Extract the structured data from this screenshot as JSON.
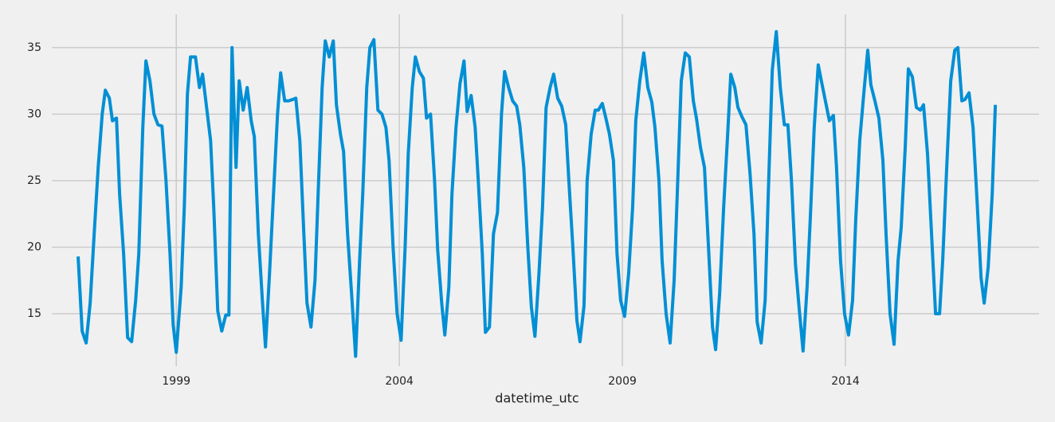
{
  "chart_data": {
    "type": "line",
    "xlabel": "datetime_utc",
    "xlim": [
      1996.21,
      2018.34
    ],
    "ylim": [
      11.05,
      37.5
    ],
    "xticks": [
      1999,
      2004,
      2009,
      2014
    ],
    "yticks": [
      15,
      20,
      25,
      30,
      35
    ],
    "grid": true,
    "x": [
      1996.8,
      1996.89,
      1996.98,
      1997.07,
      1997.16,
      1997.25,
      1997.34,
      1997.41,
      1997.5,
      1997.57,
      1997.66,
      1997.73,
      1997.82,
      1997.91,
      1998.0,
      1998.09,
      1998.16,
      1998.25,
      1998.32,
      1998.41,
      1998.5,
      1998.59,
      1998.68,
      1998.77,
      1998.86,
      1998.93,
      1999.0,
      1999.11,
      1999.18,
      1999.25,
      1999.32,
      1999.43,
      1999.52,
      1999.59,
      1999.68,
      1999.77,
      1999.84,
      1999.93,
      2000.02,
      2000.11,
      2000.18,
      2000.25,
      2000.34,
      2000.41,
      2000.5,
      2000.59,
      2000.68,
      2000.75,
      2000.84,
      2000.93,
      2001.0,
      2001.09,
      2001.18,
      2001.27,
      2001.34,
      2001.43,
      2001.52,
      2001.61,
      2001.68,
      2001.77,
      2001.86,
      2001.93,
      2002.02,
      2002.11,
      2002.18,
      2002.27,
      2002.34,
      2002.43,
      2002.52,
      2002.59,
      2002.68,
      2002.75,
      2002.84,
      2002.93,
      2003.02,
      2003.11,
      2003.18,
      2003.27,
      2003.34,
      2003.43,
      2003.52,
      2003.61,
      2003.7,
      2003.77,
      2003.86,
      2003.95,
      2004.04,
      2004.13,
      2004.2,
      2004.29,
      2004.36,
      2004.45,
      2004.54,
      2004.61,
      2004.7,
      2004.79,
      2004.86,
      2004.95,
      2005.02,
      2005.11,
      2005.18,
      2005.27,
      2005.36,
      2005.45,
      2005.52,
      2005.61,
      2005.7,
      2005.77,
      2005.86,
      2005.93,
      2006.02,
      2006.11,
      2006.2,
      2006.29,
      2006.36,
      2006.45,
      2006.54,
      2006.63,
      2006.7,
      2006.79,
      2006.88,
      2006.96,
      2007.04,
      2007.13,
      2007.21,
      2007.29,
      2007.38,
      2007.46,
      2007.55,
      2007.64,
      2007.73,
      2007.8,
      2007.89,
      2007.98,
      2008.05,
      2008.14,
      2008.21,
      2008.3,
      2008.39,
      2008.46,
      2008.55,
      2008.63,
      2008.71,
      2008.8,
      2008.88,
      2008.96,
      2009.05,
      2009.14,
      2009.23,
      2009.3,
      2009.39,
      2009.48,
      2009.57,
      2009.66,
      2009.73,
      2009.82,
      2009.89,
      2009.98,
      2010.07,
      2010.16,
      2010.23,
      2010.32,
      2010.41,
      2010.5,
      2010.59,
      2010.66,
      2010.75,
      2010.84,
      2010.93,
      2011.02,
      2011.09,
      2011.18,
      2011.27,
      2011.36,
      2011.43,
      2011.52,
      2011.59,
      2011.68,
      2011.77,
      2011.86,
      2011.95,
      2012.02,
      2012.11,
      2012.2,
      2012.27,
      2012.36,
      2012.45,
      2012.54,
      2012.63,
      2012.71,
      2012.79,
      2012.88,
      2012.96,
      2013.05,
      2013.14,
      2013.21,
      2013.3,
      2013.39,
      2013.46,
      2013.55,
      2013.64,
      2013.73,
      2013.8,
      2013.89,
      2013.98,
      2014.07,
      2014.16,
      2014.23,
      2014.32,
      2014.41,
      2014.5,
      2014.57,
      2014.66,
      2014.75,
      2014.84,
      2014.91,
      2015.0,
      2015.09,
      2015.18,
      2015.25,
      2015.34,
      2015.41,
      2015.5,
      2015.59,
      2015.68,
      2015.75,
      2015.84,
      2015.93,
      2016.02,
      2016.11,
      2016.18,
      2016.27,
      2016.36,
      2016.45,
      2016.52,
      2016.61,
      2016.68,
      2016.77,
      2016.86,
      2016.95,
      2017.04,
      2017.11,
      2017.2,
      2017.29,
      2017.36
    ],
    "series": [
      {
        "color": "#008fd5",
        "values": [
          19.3,
          13.7,
          12.8,
          15.8,
          21,
          26,
          30,
          31.8,
          31.2,
          29.5,
          29.7,
          24,
          19.5,
          13.2,
          12.9,
          16,
          19.5,
          29,
          34,
          32.5,
          30,
          29.2,
          29.1,
          25,
          19.5,
          14.2,
          12.1,
          17,
          23,
          31.5,
          34.3,
          34.3,
          32,
          33,
          30.5,
          28,
          23,
          15.2,
          13.7,
          14.9,
          14.9,
          35,
          26,
          32.5,
          30.3,
          32,
          29.5,
          28.3,
          21,
          16,
          12.5,
          18,
          24,
          30,
          33.1,
          31,
          31,
          31.1,
          31.2,
          28,
          21,
          15.8,
          14,
          17.5,
          24,
          32,
          35.5,
          34.3,
          35.5,
          30.7,
          28.5,
          27.2,
          21,
          16.5,
          11.8,
          19,
          24,
          32,
          35,
          35.6,
          30.3,
          30,
          29,
          26.5,
          20,
          15,
          13,
          20,
          27,
          32,
          34.3,
          33.2,
          32.7,
          29.7,
          30,
          25,
          19.8,
          15.8,
          13.4,
          17,
          24,
          29,
          32.3,
          34,
          30.2,
          31.4,
          29,
          25,
          19.5,
          13.6,
          14,
          21,
          22.6,
          30,
          33.2,
          32,
          31,
          30.6,
          29.2,
          26,
          20,
          15.5,
          13.3,
          18,
          23,
          30.5,
          32,
          33,
          31.2,
          30.6,
          29.2,
          25,
          20,
          14.5,
          12.9,
          15.6,
          25,
          28.5,
          30.3,
          30.3,
          30.8,
          29.7,
          28.5,
          26.5,
          19.5,
          16,
          14.8,
          18,
          23,
          29.5,
          32.5,
          34.6,
          32,
          30.9,
          29,
          25,
          19,
          15,
          12.8,
          17.5,
          24,
          32.5,
          34.6,
          34.3,
          31,
          29.7,
          27.5,
          26,
          20,
          14,
          12.3,
          16.5,
          23,
          28.5,
          33,
          32,
          30.5,
          29.8,
          29.2,
          25.6,
          21,
          14.4,
          12.8,
          16,
          24,
          33.3,
          36.2,
          32,
          29.2,
          29.2,
          25,
          18.7,
          15.5,
          12.2,
          17,
          22,
          29,
          33.7,
          32.5,
          31,
          29.5,
          29.9,
          26,
          19,
          15,
          13.4,
          16,
          22,
          28,
          31.5,
          34.8,
          32.2,
          31,
          29.7,
          26.5,
          21,
          15,
          12.7,
          19,
          21.5,
          27.5,
          33.4,
          32.8,
          30.5,
          30.3,
          30.7,
          27,
          21,
          15,
          15,
          19,
          26,
          32.5,
          34.8,
          35,
          31,
          31.1,
          31.6,
          29,
          23.5,
          17.7,
          15.8,
          18.5,
          24,
          30.7
        ]
      }
    ]
  }
}
